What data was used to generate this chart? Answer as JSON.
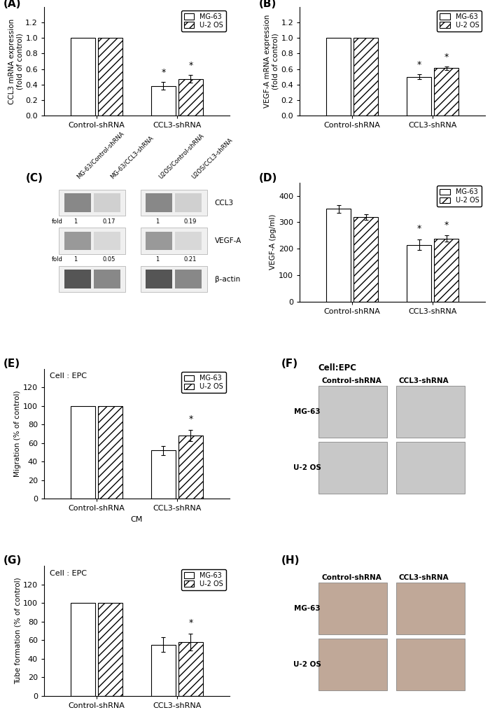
{
  "panel_A": {
    "label": "(A)",
    "ylabel": "CCL3 mRNA expression\n(fold of control)",
    "xlabel_groups": [
      "Control-shRNA",
      "CCL3-shRNA"
    ],
    "bars": {
      "MG-63": [
        1.0,
        0.38
      ],
      "U-2 OS": [
        1.0,
        0.47
      ]
    },
    "errors": {
      "MG-63": [
        0.0,
        0.05
      ],
      "U-2 OS": [
        0.0,
        0.05
      ]
    },
    "ylim": [
      0,
      1.4
    ],
    "yticks": [
      0.0,
      0.2,
      0.4,
      0.6,
      0.8,
      1.0,
      1.2
    ],
    "sig_ccl3": [
      true,
      true
    ]
  },
  "panel_B": {
    "label": "(B)",
    "ylabel": "VEGF-A mRNA expression\n(fold of control)",
    "xlabel_groups": [
      "Control-shRNA",
      "CCL3-shRNA"
    ],
    "bars": {
      "MG-63": [
        1.0,
        0.5
      ],
      "U-2 OS": [
        1.0,
        0.61
      ]
    },
    "errors": {
      "MG-63": [
        0.0,
        0.03
      ],
      "U-2 OS": [
        0.0,
        0.02
      ]
    },
    "ylim": [
      0,
      1.4
    ],
    "yticks": [
      0.0,
      0.2,
      0.4,
      0.6,
      0.8,
      1.0,
      1.2
    ],
    "sig_ccl3": [
      true,
      true
    ]
  },
  "panel_D": {
    "label": "(D)",
    "ylabel": "VEGF-A (pg/ml)",
    "xlabel_groups": [
      "Control-shRNA",
      "CCL3-shRNA"
    ],
    "bars": {
      "MG-63": [
        350,
        215
      ],
      "U-2 OS": [
        320,
        238
      ]
    },
    "errors": {
      "MG-63": [
        15,
        20
      ],
      "U-2 OS": [
        10,
        12
      ]
    },
    "ylim": [
      0,
      450
    ],
    "yticks": [
      0,
      100,
      200,
      300,
      400
    ],
    "sig_ccl3": [
      true,
      true
    ]
  },
  "panel_E": {
    "label": "(E)",
    "title": "Cell : EPC",
    "ylabel": "Migration (% of control)",
    "xlabel": "CM",
    "xlabel_groups": [
      "Control-shRNA",
      "CCL3-shRNA"
    ],
    "bars": {
      "MG-63": [
        100,
        52
      ],
      "U-2 OS": [
        100,
        68
      ]
    },
    "errors": {
      "MG-63": [
        0.0,
        5
      ],
      "U-2 OS": [
        0.0,
        6
      ]
    },
    "ylim": [
      0,
      140
    ],
    "yticks": [
      0,
      20,
      40,
      60,
      80,
      100,
      120
    ],
    "sig_ccl3": [
      false,
      true
    ]
  },
  "panel_G": {
    "label": "(G)",
    "title": "Cell : EPC",
    "ylabel": "Tube formation (% of control)",
    "xlabel": "CM",
    "xlabel_groups": [
      "Control-shRNA",
      "CCL3-shRNA"
    ],
    "bars": {
      "MG-63": [
        100,
        55
      ],
      "U-2 OS": [
        100,
        58
      ]
    },
    "errors": {
      "MG-63": [
        0.0,
        8
      ],
      "U-2 OS": [
        0.0,
        9
      ]
    },
    "ylim": [
      0,
      140
    ],
    "yticks": [
      0,
      20,
      40,
      60,
      80,
      100,
      120
    ],
    "sig_ccl3": [
      false,
      true
    ]
  },
  "panel_C": {
    "label": "(C)",
    "col_headers": [
      "MG-63/Control-shRNA",
      "MG-63/CCL3-shRNA",
      "U2OS/Control-shRNA",
      "U2OS/CCL3-shRNA"
    ],
    "row_labels": [
      "CCL3",
      "VEGF-A",
      "β-actin"
    ],
    "fold_labels": [
      [
        "1",
        "0.17",
        "1",
        "0.19"
      ],
      [
        "1",
        "0.05",
        "1",
        "0.21"
      ],
      null
    ]
  },
  "panel_F": {
    "label": "(F)",
    "title": "Cell:EPC",
    "col_headers": [
      "Control-shRNA",
      "CCL3-shRNA"
    ],
    "row_labels": [
      "MG-63",
      "U-2 OS"
    ],
    "img_color": "#c8c8c8"
  },
  "panel_H": {
    "label": "(H)",
    "col_headers": [
      "Control-shRNA",
      "CCL3-shRNA"
    ],
    "row_labels": [
      "MG-63",
      "U-2 OS"
    ],
    "img_color": "#c0a898"
  }
}
